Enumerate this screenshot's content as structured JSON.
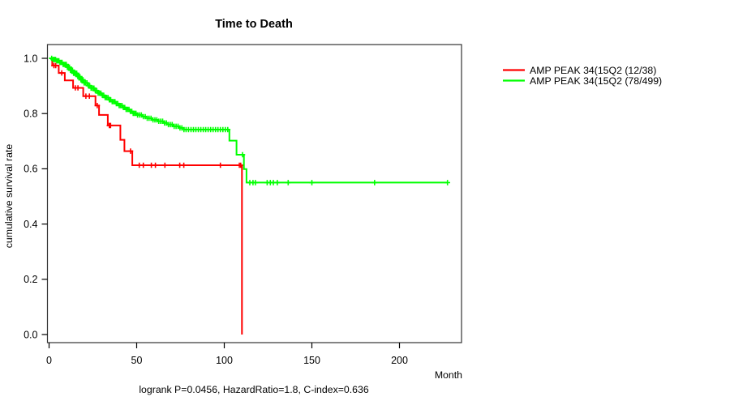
{
  "chart_data": {
    "type": "line",
    "subtype": "kaplan-meier-step",
    "title": "Time to Death",
    "xlabel": "Month",
    "ylabel": "cumulative survival rate",
    "caption": "logrank P=0.0456, HazardRatio=1.8, C-index=0.636",
    "grid": false,
    "legend_position": "right-outside",
    "xlim": [
      0,
      235
    ],
    "ylim": [
      0.0,
      1.0
    ],
    "x_ticks": [
      {
        "v": 0,
        "label": "0"
      },
      {
        "v": 50,
        "label": "50"
      },
      {
        "v": 100,
        "label": "100"
      },
      {
        "v": 150,
        "label": "150"
      },
      {
        "v": 200,
        "label": "200"
      }
    ],
    "y_ticks": [
      {
        "v": 0.0,
        "label": "0.0"
      },
      {
        "v": 0.2,
        "label": "0.2"
      },
      {
        "v": 0.4,
        "label": "0.4"
      },
      {
        "v": 0.6,
        "label": "0.6"
      },
      {
        "v": 0.8,
        "label": "0.8"
      },
      {
        "v": 1.0,
        "label": "1.0"
      }
    ],
    "series": [
      {
        "name": "AMP PEAK 34(15Q2 (12/38)",
        "color": "#ff0000",
        "events": "12/38",
        "steps": [
          [
            0,
            1.0
          ],
          [
            1.8,
            0.974
          ],
          [
            5.5,
            0.947
          ],
          [
            9,
            0.92
          ],
          [
            13.7,
            0.893
          ],
          [
            19.5,
            0.863
          ],
          [
            26.5,
            0.829
          ],
          [
            28.5,
            0.795
          ],
          [
            33.5,
            0.757
          ],
          [
            40.7,
            0.705
          ],
          [
            43,
            0.664
          ],
          [
            47.5,
            0.613
          ],
          [
            110.1,
            0.0
          ]
        ],
        "censor_months": [
          2.8,
          3.8,
          7.2,
          15,
          16.5,
          21,
          23,
          27.5,
          34.4,
          35.1,
          46.5,
          51.5,
          53.8,
          58.4,
          60.7,
          66.1,
          74.6,
          76.9,
          97.8,
          108.6,
          109.4
        ]
      },
      {
        "name": "AMP PEAK 34(15Q2 (78/499)",
        "color": "#00ff00",
        "events": "78/499",
        "steps": [
          [
            0,
            1.0
          ],
          [
            2,
            0.996
          ],
          [
            4,
            0.991
          ],
          [
            6,
            0.985
          ],
          [
            8,
            0.978
          ],
          [
            10,
            0.968
          ],
          [
            12,
            0.957
          ],
          [
            14,
            0.946
          ],
          [
            16,
            0.934
          ],
          [
            18,
            0.922
          ],
          [
            20,
            0.911
          ],
          [
            22,
            0.901
          ],
          [
            24,
            0.892
          ],
          [
            26,
            0.883
          ],
          [
            28,
            0.874
          ],
          [
            30,
            0.866
          ],
          [
            32,
            0.858
          ],
          [
            34,
            0.85
          ],
          [
            36,
            0.843
          ],
          [
            38,
            0.836
          ],
          [
            40,
            0.829
          ],
          [
            42,
            0.822
          ],
          [
            44,
            0.815
          ],
          [
            46,
            0.808
          ],
          [
            48,
            0.801
          ],
          [
            50,
            0.795
          ],
          [
            53,
            0.789
          ],
          [
            56,
            0.783
          ],
          [
            59,
            0.777
          ],
          [
            62,
            0.772
          ],
          [
            65,
            0.766
          ],
          [
            68,
            0.76
          ],
          [
            71,
            0.754
          ],
          [
            74,
            0.748
          ],
          [
            77,
            0.742
          ],
          [
            102.9,
            0.702
          ],
          [
            107,
            0.651
          ],
          [
            111.2,
            0.599
          ],
          [
            112.7,
            0.55
          ],
          [
            227.4,
            0.55
          ]
        ],
        "censor_months": [
          1.5,
          2.3,
          3,
          3.7,
          4.4,
          5,
          5.6,
          6.2,
          6.8,
          7.4,
          8,
          8.6,
          9.2,
          9.8,
          10.4,
          11,
          11.6,
          12.2,
          12.8,
          13.4,
          14,
          14.6,
          15.2,
          15.8,
          16.4,
          17,
          17.6,
          18.2,
          18.8,
          19.4,
          20,
          20.8,
          21.6,
          22.4,
          23.2,
          24,
          24.8,
          25.6,
          26.4,
          27.2,
          28,
          28.8,
          29.6,
          30.4,
          31.2,
          32,
          32.8,
          33.6,
          34.4,
          35.2,
          36,
          36.8,
          37.6,
          38.4,
          39.2,
          40,
          40.8,
          41.6,
          42.4,
          43.2,
          44,
          44.8,
          45.6,
          46.4,
          47.2,
          48,
          48.8,
          49.6,
          50.5,
          51.6,
          52.7,
          53.8,
          54.9,
          56,
          57.1,
          58.2,
          59.3,
          60.4,
          61.5,
          62.6,
          63.7,
          64.8,
          65.9,
          67,
          68.1,
          69.2,
          70.3,
          71.4,
          72.5,
          73.6,
          74.7,
          75.8,
          77,
          78.2,
          79.6,
          81,
          82.4,
          83.8,
          85.2,
          86.6,
          88,
          89.4,
          90.8,
          92.2,
          93.6,
          95,
          96.4,
          97.8,
          99.2,
          100.6,
          102,
          110.4,
          114.6,
          116.4,
          117.8,
          124.5,
          126.3,
          128,
          130.3,
          136.5,
          150,
          185.8,
          227.4
        ]
      }
    ]
  }
}
